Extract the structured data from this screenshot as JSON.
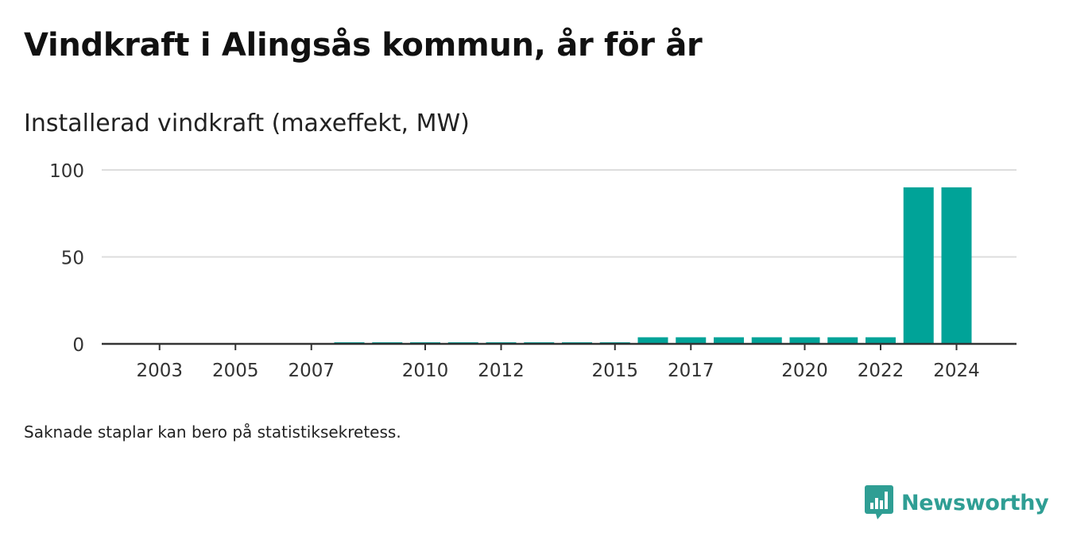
{
  "title": "Vindkraft i Alingsås kommun, år för år",
  "subtitle": "Installerad vindkraft (maxeffekt, MW)",
  "footnote": "Saknade staplar kan bero på statistiksekretess.",
  "brand": {
    "name": "Newsworthy",
    "color": "#2f9e94",
    "icon": "newsworthy-logo-icon"
  },
  "colors": {
    "bar": "#00a398",
    "grid": "#dddddd",
    "axis": "#333333"
  },
  "chart_data": {
    "type": "bar",
    "title": "Installerad vindkraft (maxeffekt, MW)",
    "xlabel": "",
    "ylabel": "",
    "categories": [
      2002,
      2003,
      2004,
      2005,
      2006,
      2007,
      2008,
      2009,
      2010,
      2011,
      2012,
      2013,
      2014,
      2015,
      2016,
      2017,
      2018,
      2019,
      2020,
      2021,
      2022,
      2023,
      2024
    ],
    "values": [
      null,
      null,
      null,
      null,
      null,
      null,
      0.6,
      0.6,
      0.6,
      0.6,
      0.6,
      0.6,
      0.6,
      0.6,
      3.8,
      3.8,
      3.8,
      3.8,
      3.8,
      3.8,
      3.8,
      90,
      90
    ],
    "x_tick_labels": [
      "2003",
      "2005",
      "2007",
      "2010",
      "2012",
      "2015",
      "2017",
      "2020",
      "2022",
      "2024"
    ],
    "y_ticks": [
      0,
      50,
      100
    ],
    "ylim": [
      0,
      100
    ],
    "grid": true,
    "legend": "none"
  }
}
